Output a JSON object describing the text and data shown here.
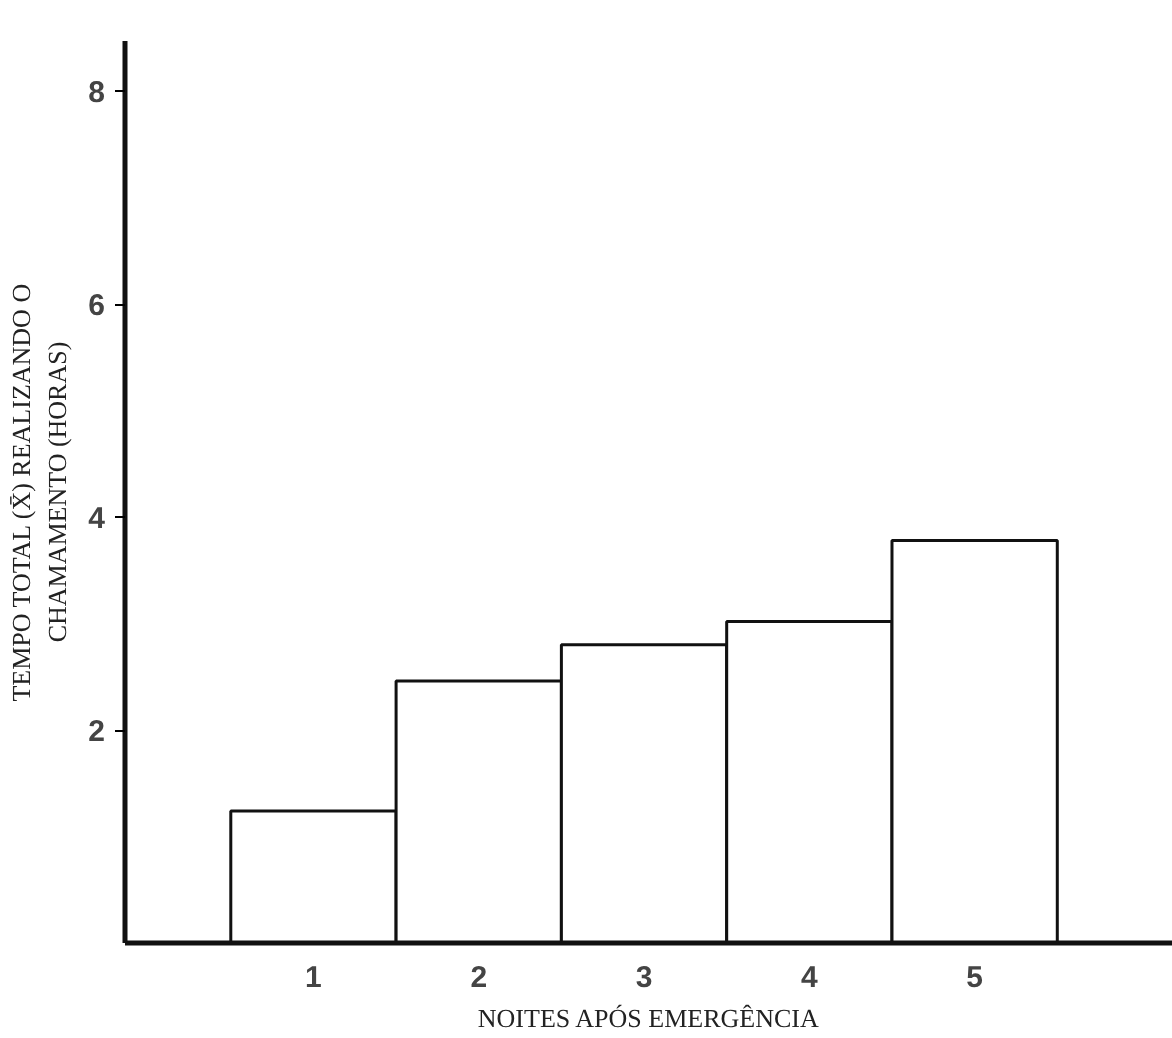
{
  "chart_data": {
    "type": "bar",
    "xlabel": "NOITES APÓS EMERGÊNCIA",
    "ylabel": "TEMPO TOTAL (X̄) REALIZANDO O\nCHAMAMENTO (HORAS)",
    "categories": [
      "1",
      "2",
      "3",
      "4",
      "5"
    ],
    "values": [
      1.24,
      2.46,
      2.8,
      3.02,
      3.78
    ],
    "color": "#ffffff",
    "ylim": [
      0,
      8.47
    ],
    "yticks": [
      2,
      4,
      6,
      8
    ],
    "grid": false
  }
}
